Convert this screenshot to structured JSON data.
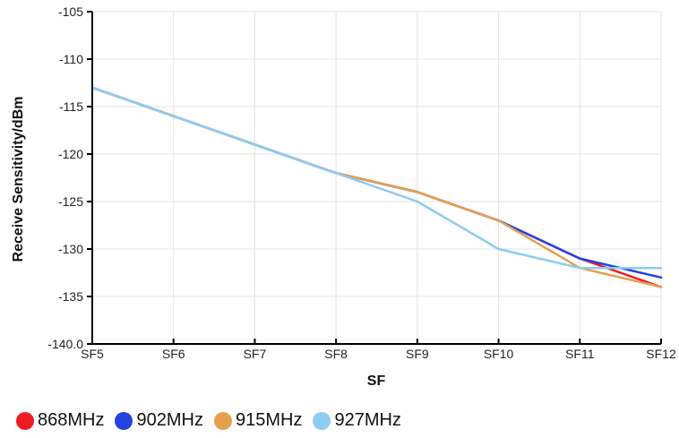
{
  "chart_data": {
    "type": "line",
    "categories": [
      "SF5",
      "SF6",
      "SF7",
      "SF8",
      "SF9",
      "SF10",
      "SF11",
      "SF12"
    ],
    "xlabel": "SF",
    "ylabel": "Receive Sensitivity/dBm",
    "ylim": [
      -140,
      -105
    ],
    "yticks": [
      "-105",
      "-110",
      "-115",
      "-120",
      "-125",
      "-130",
      "-135",
      "-140.0"
    ],
    "grid": true,
    "legend_position": "bottom-left",
    "series": [
      {
        "name": "868MHz",
        "color": "#ee1c25",
        "values": [
          -113,
          -116,
          -119,
          -122,
          -124,
          -127,
          -131,
          -134
        ]
      },
      {
        "name": "902MHz",
        "color": "#2342e0",
        "values": [
          -113,
          -116,
          -119,
          -122,
          -124,
          -127,
          -131,
          -133
        ]
      },
      {
        "name": "915MHz",
        "color": "#e4a04f",
        "values": [
          -113,
          -116,
          -119,
          -122,
          -124,
          -127,
          -132,
          -134
        ]
      },
      {
        "name": "927MHz",
        "color": "#8cccf2",
        "values": [
          -113,
          -116,
          -119,
          -122,
          -125,
          -130,
          -132,
          -132
        ]
      }
    ]
  }
}
